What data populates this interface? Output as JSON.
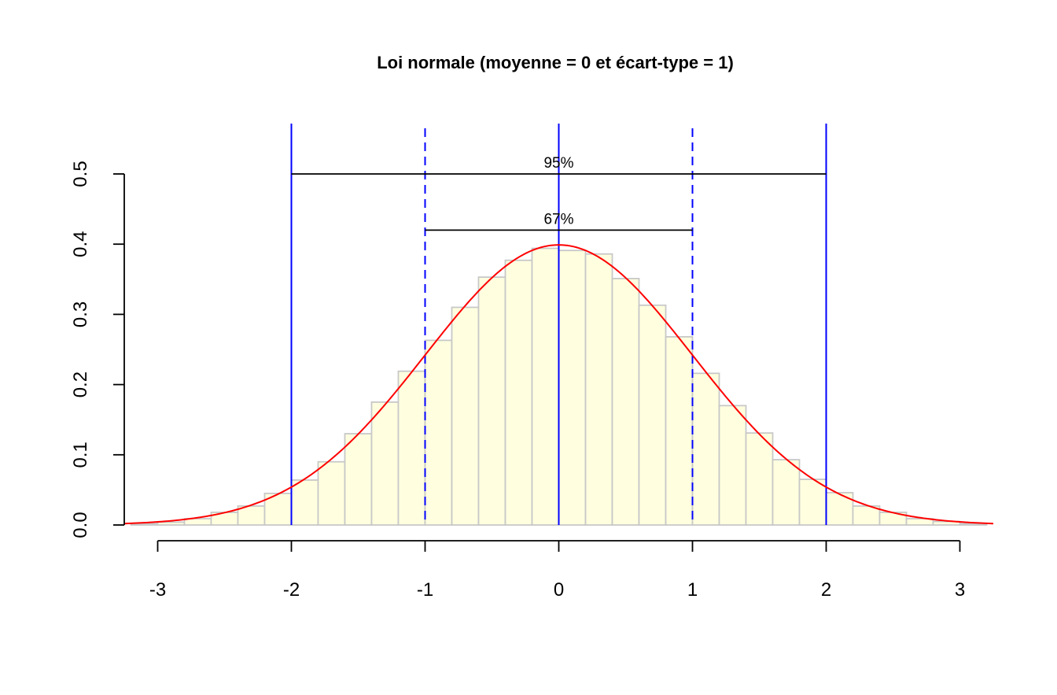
{
  "chart_data": {
    "type": "bar",
    "title": "Loi normale (moyenne = 0 et écart-type = 1)",
    "xlabel": "",
    "ylabel": "",
    "xlim": [
      -3.25,
      3.25
    ],
    "ylim": [
      0,
      0.5
    ],
    "x_ticks": [
      -3,
      -2,
      -1,
      0,
      1,
      2,
      3
    ],
    "x_tick_labels": [
      "-3",
      "-2",
      "-1",
      "0",
      "1",
      "2",
      "3"
    ],
    "y_ticks": [
      0,
      0.1,
      0.2,
      0.3,
      0.4,
      0.5
    ],
    "y_tick_labels": [
      "0.0",
      "0.1",
      "0.2",
      "0.3",
      "0.4",
      "0.5"
    ],
    "grid": false,
    "legend": "none",
    "histogram": {
      "bin_width": 0.2,
      "bin_edges": [
        -3.2,
        -3.0,
        -2.8,
        -2.6,
        -2.4,
        -2.2,
        -2.0,
        -1.8,
        -1.6,
        -1.4,
        -1.2,
        -1.0,
        -0.8,
        -0.6,
        -0.4,
        -0.2,
        0.0,
        0.2,
        0.4,
        0.6,
        0.8,
        1.0,
        1.2,
        1.4,
        1.6,
        1.8,
        2.0,
        2.2,
        2.4,
        2.6,
        2.8,
        3.0,
        3.2
      ],
      "density": [
        0.002,
        0.004,
        0.009,
        0.018,
        0.027,
        0.045,
        0.064,
        0.09,
        0.13,
        0.175,
        0.219,
        0.263,
        0.31,
        0.353,
        0.377,
        0.394,
        0.391,
        0.386,
        0.351,
        0.313,
        0.268,
        0.216,
        0.17,
        0.131,
        0.093,
        0.065,
        0.046,
        0.027,
        0.018,
        0.009,
        0.005,
        0.002
      ],
      "fill": "#ffffe0",
      "border": "#c8c8c8"
    },
    "curve": {
      "function": "normal density",
      "mean": 0,
      "sd": 1,
      "color": "#ff0000"
    },
    "vlines_solid": {
      "x": [
        -2,
        0,
        2
      ],
      "color": "#0000ff"
    },
    "vlines_dashed": {
      "x": [
        -1,
        1
      ],
      "color": "#0000ff"
    },
    "segments": [
      {
        "x0": -2,
        "x1": 2,
        "y": 0.5,
        "label": "95%"
      },
      {
        "x0": -1,
        "x1": 1,
        "y": 0.42,
        "label": "67%"
      }
    ]
  }
}
